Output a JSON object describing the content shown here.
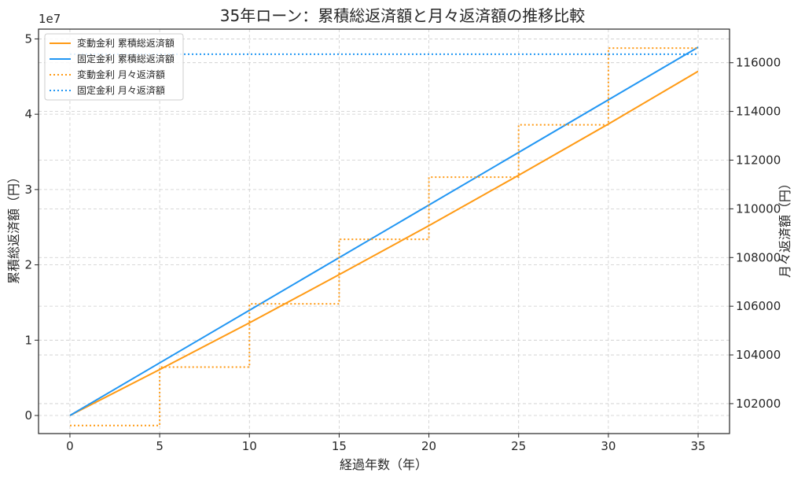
{
  "chart_data": {
    "type": "line",
    "title": "35年ローン：累積総返済額と月々返済額の推移比較",
    "xlabel": "経過年数（年）",
    "ylabel_left": "累積総返済額（円）",
    "ylabel_right": "月々返済額（円）",
    "left_axis_multiplier": "1e7",
    "x_ticks": [
      0,
      5,
      10,
      15,
      20,
      25,
      30,
      35
    ],
    "y_left_ticks": [
      0,
      1,
      2,
      3,
      4,
      5
    ],
    "y_right_ticks": [
      102000,
      104000,
      106000,
      108000,
      110000,
      112000,
      114000,
      116000
    ],
    "xlim": [
      -1.75,
      36.75
    ],
    "ylim_left": [
      -0.24,
      5.13
    ],
    "ylim_right": [
      100770,
      117380
    ],
    "grid": true,
    "legend_position": "top-left",
    "series": [
      {
        "name": "変動金利 累積総返済額",
        "axis": "left",
        "style": "solid",
        "color": "#ff9a14",
        "x": [
          0,
          5,
          10,
          15,
          20,
          25,
          30,
          35
        ],
        "y": [
          0,
          0.61,
          1.23,
          1.87,
          2.52,
          3.19,
          3.87,
          4.57
        ]
      },
      {
        "name": "固定金利 累積総返済額",
        "axis": "left",
        "style": "solid",
        "color": "#2196f3",
        "x": [
          0,
          35
        ],
        "y": [
          0,
          4.89
        ]
      },
      {
        "name": "変動金利 月々返済額",
        "axis": "right",
        "style": "dotted-step",
        "color": "#ff9a14",
        "x": [
          0,
          5,
          5,
          10,
          10,
          15,
          15,
          20,
          20,
          25,
          25,
          30,
          30,
          35
        ],
        "y": [
          101100,
          101100,
          103500,
          103500,
          106100,
          106100,
          108750,
          108750,
          111300,
          111300,
          113450,
          113450,
          116600,
          116600
        ]
      },
      {
        "name": "固定金利 月々返済額",
        "axis": "right",
        "style": "dotted",
        "color": "#2196f3",
        "x": [
          0,
          35
        ],
        "y": [
          116350,
          116350
        ]
      }
    ]
  }
}
